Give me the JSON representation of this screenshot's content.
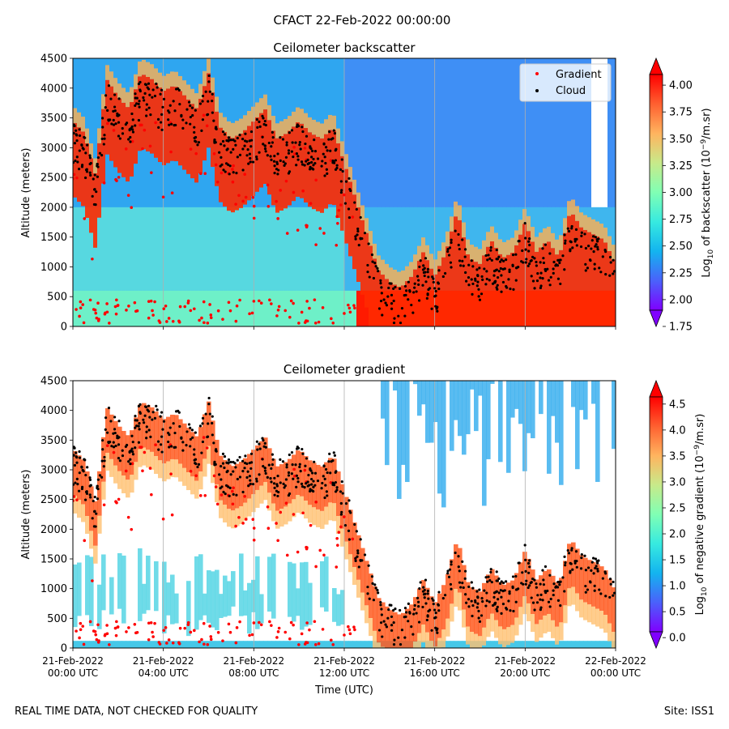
{
  "figure": {
    "suptitle": "CFACT 22-Feb-2022 00:00:00",
    "footer_left": "REAL TIME DATA, NOT CHECKED FOR QUALITY",
    "footer_right": "Site: ISS1"
  },
  "chart_data": [
    {
      "type": "heatmap",
      "title": "Ceilometer backscatter",
      "ylabel": "Altitude (meters)",
      "xlabel": "",
      "ylim": [
        0,
        4500
      ],
      "yticks": [
        0,
        500,
        1000,
        1500,
        2000,
        2500,
        3000,
        3500,
        4000,
        4500
      ],
      "xlim_hours": [
        0,
        24
      ],
      "colorbar": {
        "label": "Log10 of backscatter (10^-9/m.sr)",
        "label_parts": [
          "Log",
          "10",
          " of backscatter (10",
          "−9",
          "/m.sr)"
        ],
        "range": [
          1.75,
          4.25
        ],
        "ticks": [
          "1.75",
          "2.00",
          "2.25",
          "2.50",
          "2.75",
          "3.00",
          "3.25",
          "3.50",
          "3.75",
          "4.00"
        ],
        "colormap": "rainbow",
        "extend": "both"
      },
      "legend": {
        "position": "top-right",
        "entries": [
          {
            "label": "Gradient",
            "color": "#ff0000"
          },
          {
            "label": "Cloud",
            "color": "#000000"
          }
        ]
      },
      "grid": "vertical"
    },
    {
      "type": "heatmap",
      "title": "Ceilometer gradient",
      "ylabel": "Altitude (meters)",
      "xlabel": "Time (UTC)",
      "ylim": [
        0,
        4500
      ],
      "yticks": [
        0,
        500,
        1000,
        1500,
        2000,
        2500,
        3000,
        3500,
        4000,
        4500
      ],
      "xlim_hours": [
        0,
        24
      ],
      "xticks": [
        {
          "hour": 0,
          "line1": "21-Feb-2022",
          "line2": "00:00 UTC"
        },
        {
          "hour": 4,
          "line1": "21-Feb-2022",
          "line2": "04:00 UTC"
        },
        {
          "hour": 8,
          "line1": "21-Feb-2022",
          "line2": "08:00 UTC"
        },
        {
          "hour": 12,
          "line1": "21-Feb-2022",
          "line2": "12:00 UTC"
        },
        {
          "hour": 16,
          "line1": "21-Feb-2022",
          "line2": "16:00 UTC"
        },
        {
          "hour": 20,
          "line1": "21-Feb-2022",
          "line2": "20:00 UTC"
        },
        {
          "hour": 24,
          "line1": "22-Feb-2022",
          "line2": "00:00 UTC"
        }
      ],
      "colorbar": {
        "label": "Log10 of negative gradient (10^-9/m.sr)",
        "label_parts": [
          "Log",
          "10",
          " of negative gradient (10",
          "−9",
          "/m.sr)"
        ],
        "range": [
          -0.2,
          4.95
        ],
        "ticks": [
          "0.0",
          "0.5",
          "1.0",
          "1.5",
          "2.0",
          "2.5",
          "3.0",
          "3.5",
          "4.0",
          "4.5"
        ],
        "colormap": "rainbow",
        "extend": "both"
      },
      "grid": "vertical"
    }
  ],
  "series": {
    "cloud_base_km_by_hour": [
      [
        0,
        3.1
      ],
      [
        0.5,
        2.9
      ],
      [
        1,
        2.2
      ],
      [
        1.5,
        3.8
      ],
      [
        2,
        3.5
      ],
      [
        2.5,
        3.3
      ],
      [
        3,
        3.9
      ],
      [
        3.5,
        3.8
      ],
      [
        4,
        3.6
      ],
      [
        4.5,
        3.7
      ],
      [
        5,
        3.5
      ],
      [
        5.5,
        3.3
      ],
      [
        6,
        3.9
      ],
      [
        6.5,
        3.0
      ],
      [
        7,
        2.8
      ],
      [
        7.5,
        2.9
      ],
      [
        8,
        3.1
      ],
      [
        8.5,
        3.3
      ],
      [
        9,
        2.8
      ],
      [
        9.5,
        2.9
      ],
      [
        10,
        3.1
      ],
      [
        10.5,
        2.9
      ],
      [
        11,
        2.8
      ],
      [
        11.5,
        3.0
      ],
      [
        12,
        2.4
      ],
      [
        12.5,
        1.8
      ],
      [
        13,
        1.2
      ],
      [
        13.5,
        0.6
      ],
      [
        14,
        0.4
      ],
      [
        14.5,
        0.3
      ],
      [
        15,
        0.5
      ],
      [
        15.5,
        0.9
      ],
      [
        16,
        0.5
      ],
      [
        16.5,
        0.9
      ],
      [
        17,
        1.6
      ],
      [
        17.5,
        0.8
      ],
      [
        18,
        0.7
      ],
      [
        18.5,
        1.1
      ],
      [
        19,
        0.8
      ],
      [
        19.5,
        0.9
      ],
      [
        20,
        1.4
      ],
      [
        20.5,
        0.9
      ],
      [
        21,
        1.1
      ],
      [
        21.5,
        0.8
      ],
      [
        22,
        1.6
      ],
      [
        22.5,
        1.3
      ],
      [
        23,
        1.2
      ],
      [
        23.5,
        1.1
      ],
      [
        24,
        0.7
      ]
    ]
  }
}
